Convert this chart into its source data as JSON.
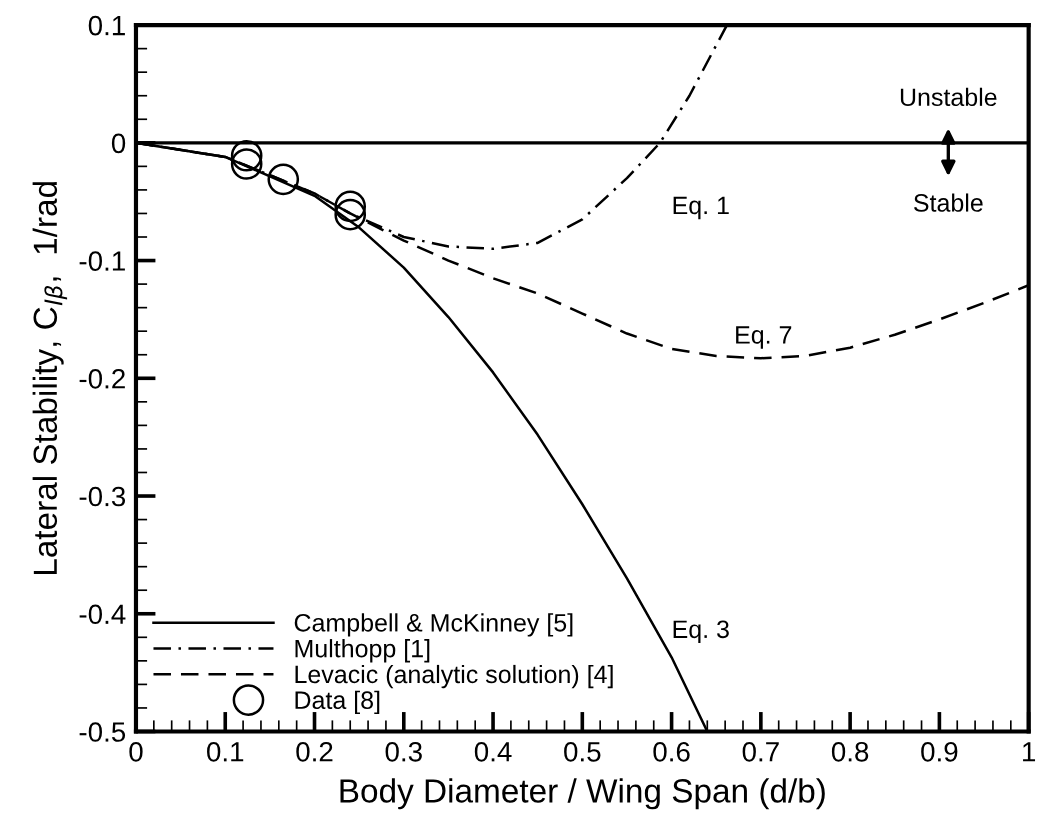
{
  "chart_data": {
    "type": "line",
    "xlabel": "Body Diameter / Wing Span (d/b)",
    "ylabel": "Lateral Stability, C$_{lβ}$,  1/rad",
    "xlim": [
      0,
      1
    ],
    "ylim": [
      -0.5,
      0.1
    ],
    "xticks": [
      0,
      0.1,
      0.2,
      0.3,
      0.4,
      0.5,
      0.6,
      0.7,
      0.8,
      0.9,
      1
    ],
    "yticks": [
      -0.5,
      -0.4,
      -0.3,
      -0.2,
      -0.1,
      0,
      0.1
    ],
    "grid": false,
    "legend": "bottom left",
    "series": [
      {
        "name": "Campbell & McKinney [5]",
        "color": "#000000",
        "line_style": "solid",
        "marker": "none",
        "x": [
          0,
          0.1,
          0.2,
          0.25,
          0.3,
          0.35,
          0.4,
          0.45,
          0.5,
          0.55,
          0.6,
          0.64
        ],
        "values": [
          0,
          -0.012,
          -0.045,
          -0.072,
          -0.106,
          -0.148,
          -0.195,
          -0.248,
          -0.307,
          -0.37,
          -0.437,
          -0.5
        ]
      },
      {
        "name": "Multhopp [1]",
        "color": "#000000",
        "line_style": "dashdot",
        "marker": "none",
        "x": [
          0,
          0.1,
          0.2,
          0.24,
          0.3,
          0.35,
          0.4,
          0.45,
          0.5,
          0.55,
          0.587,
          0.62,
          0.662
        ],
        "values": [
          0,
          -0.012,
          -0.043,
          -0.06,
          -0.08,
          -0.088,
          -0.09,
          -0.085,
          -0.065,
          -0.03,
          0,
          0.04,
          0.1
        ]
      },
      {
        "name": "Levacic (analytic solution) [4]",
        "color": "#000000",
        "line_style": "dashed",
        "marker": "none",
        "x": [
          0,
          0.1,
          0.2,
          0.24,
          0.3,
          0.35,
          0.4,
          0.45,
          0.5,
          0.55,
          0.6,
          0.65,
          0.7,
          0.75,
          0.8,
          0.85,
          0.9,
          0.95,
          1
        ],
        "values": [
          0,
          -0.012,
          -0.043,
          -0.06,
          -0.083,
          -0.1,
          -0.115,
          -0.128,
          -0.145,
          -0.162,
          -0.175,
          -0.181,
          -0.183,
          -0.181,
          -0.174,
          -0.163,
          -0.15,
          -0.136,
          -0.121
        ]
      },
      {
        "name": "Data [8]",
        "type": "scatter",
        "color": "#000000",
        "marker": "circle",
        "x": [
          0.124,
          0.124,
          0.165,
          0.24,
          0.24
        ],
        "values": [
          -0.011,
          -0.018,
          -0.031,
          -0.054,
          -0.061
        ]
      }
    ],
    "ref_lines": [
      {
        "axis": "y",
        "value": 0,
        "color": "#000000",
        "line_style": "solid"
      }
    ],
    "annotations": [
      "Eq. 1",
      "Eq. 7",
      "Eq. 3",
      "Unstable",
      "Stable"
    ]
  }
}
